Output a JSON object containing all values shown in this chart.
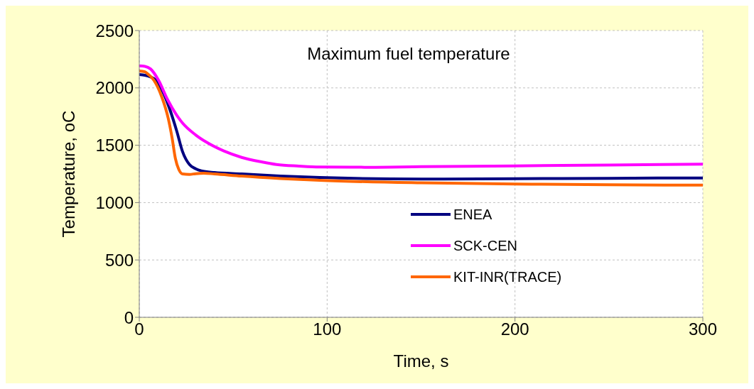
{
  "chart_data": {
    "type": "line",
    "title": "Maximum fuel temperature",
    "xlabel": "Time, s",
    "ylabel": "Temperature, oC",
    "xlim": [
      0,
      300
    ],
    "xticks": [
      0,
      100,
      200,
      300
    ],
    "ylim": [
      0,
      2500
    ],
    "yticks": [
      0,
      500,
      1000,
      1500,
      2000,
      2500
    ],
    "grid": true,
    "legend": "center",
    "marker": "none",
    "line_style": "solid",
    "series": [
      {
        "name": "ENEA",
        "color": "#000080",
        "x": [
          0,
          3,
          6,
          9,
          13,
          16.6,
          20,
          23,
          26.7,
          30,
          33,
          40,
          54.5,
          75,
          96,
          150,
          200,
          250,
          300
        ],
        "values": [
          2116,
          2110,
          2095,
          2066,
          1950,
          1796,
          1620,
          1446,
          1332,
          1295,
          1277,
          1262,
          1250,
          1232,
          1219,
          1205,
          1208,
          1212,
          1215
        ]
      },
      {
        "name": "SCK-CEN",
        "color": "#ff00ff",
        "x": [
          0,
          3,
          6,
          10.3,
          15,
          20,
          23,
          30,
          35.6,
          45,
          54.5,
          65,
          73,
          85,
          96,
          120,
          150,
          200,
          250,
          300
        ],
        "values": [
          2192,
          2188,
          2165,
          2065,
          1900,
          1760,
          1694,
          1590,
          1528,
          1450,
          1394,
          1355,
          1332,
          1318,
          1310,
          1308,
          1313,
          1320,
          1328,
          1335
        ]
      },
      {
        "name": "KIT-INR(TRACE)",
        "color": "#ff6600",
        "x": [
          0,
          3,
          5,
          7.8,
          12,
          15.4,
          17.5,
          19.2,
          21,
          23,
          26.7,
          30,
          34.3,
          40,
          54.5,
          75,
          96,
          150,
          200,
          250,
          300
        ],
        "values": [
          2147,
          2140,
          2115,
          2066,
          1920,
          1735,
          1560,
          1386,
          1290,
          1250,
          1246,
          1252,
          1256,
          1250,
          1231,
          1210,
          1194,
          1172,
          1162,
          1155,
          1152
        ]
      }
    ]
  }
}
